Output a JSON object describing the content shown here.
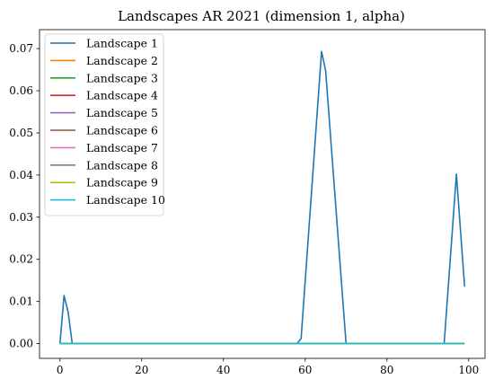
{
  "chart_data": {
    "type": "line",
    "title": "Landscapes AR 2021 (dimension 1, alpha)",
    "xlabel": "",
    "ylabel": "",
    "xlim": [
      -5,
      104
    ],
    "ylim": [
      -0.0035,
      0.0745
    ],
    "xticks": [
      0,
      20,
      40,
      60,
      80,
      100
    ],
    "xtick_labels": [
      "0",
      "20",
      "40",
      "60",
      "80",
      "100"
    ],
    "yticks": [
      0.0,
      0.01,
      0.02,
      0.03,
      0.04,
      0.05,
      0.06,
      0.07
    ],
    "ytick_labels": [
      "0.00",
      "0.01",
      "0.02",
      "0.03",
      "0.04",
      "0.05",
      "0.06",
      "0.07"
    ],
    "grid": false,
    "legend_position": "upper-left",
    "series": [
      {
        "name": "Landscape 1",
        "color": "#1f77b4",
        "points": [
          [
            0,
            0.0
          ],
          [
            1,
            0.0114
          ],
          [
            2,
            0.0075
          ],
          [
            3,
            0.0
          ],
          [
            58,
            0.0
          ],
          [
            59,
            0.0012
          ],
          [
            64,
            0.0693
          ],
          [
            65,
            0.0648
          ],
          [
            70,
            0.0
          ],
          [
            94,
            0.0
          ],
          [
            97,
            0.0402
          ],
          [
            99,
            0.0135
          ]
        ]
      },
      {
        "name": "Landscape 2",
        "color": "#ff7f0e",
        "points": [
          [
            0,
            0.0
          ],
          [
            99,
            0.0
          ]
        ]
      },
      {
        "name": "Landscape 3",
        "color": "#2ca02c",
        "points": [
          [
            0,
            0.0
          ],
          [
            99,
            0.0
          ]
        ]
      },
      {
        "name": "Landscape 4",
        "color": "#d62728",
        "points": [
          [
            0,
            0.0
          ],
          [
            99,
            0.0
          ]
        ]
      },
      {
        "name": "Landscape 5",
        "color": "#9467bd",
        "points": [
          [
            0,
            0.0
          ],
          [
            99,
            0.0
          ]
        ]
      },
      {
        "name": "Landscape 6",
        "color": "#8c564b",
        "points": [
          [
            0,
            0.0
          ],
          [
            99,
            0.0
          ]
        ]
      },
      {
        "name": "Landscape 7",
        "color": "#e377c2",
        "points": [
          [
            0,
            0.0
          ],
          [
            99,
            0.0
          ]
        ]
      },
      {
        "name": "Landscape 8",
        "color": "#7f7f7f",
        "points": [
          [
            0,
            0.0
          ],
          [
            99,
            0.0
          ]
        ]
      },
      {
        "name": "Landscape 9",
        "color": "#bcbd22",
        "points": [
          [
            0,
            0.0
          ],
          [
            99,
            0.0
          ]
        ]
      },
      {
        "name": "Landscape 10",
        "color": "#17becf",
        "points": [
          [
            0,
            0.0
          ],
          [
            99,
            0.0
          ]
        ]
      }
    ]
  }
}
